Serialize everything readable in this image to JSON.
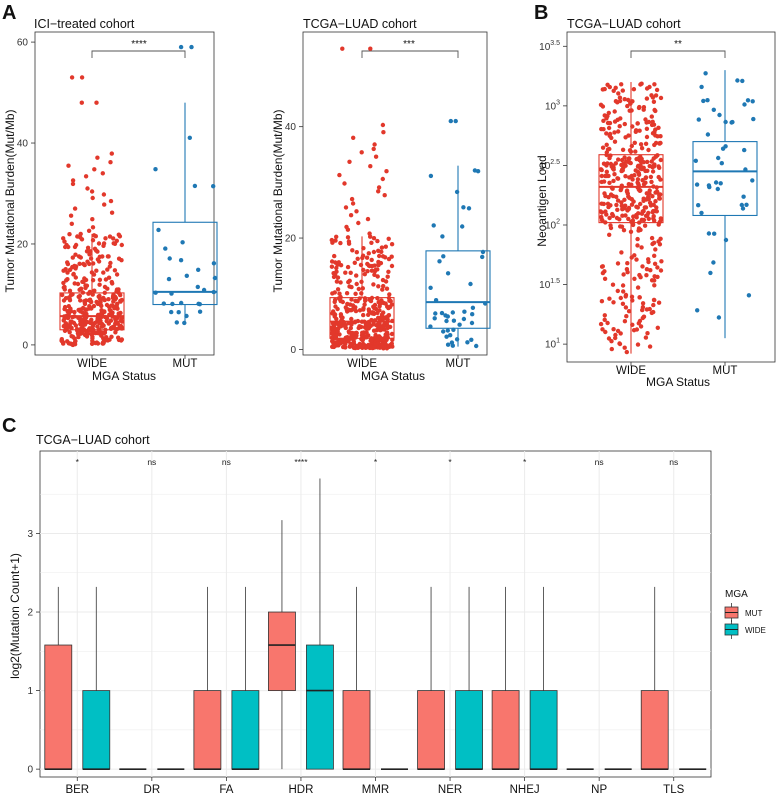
{
  "panel_labels": [
    "A",
    "B",
    "C"
  ],
  "colors": {
    "red": "#e2382b",
    "blue": "#1f78b4",
    "mut_fill": "#f8766d",
    "wide_fill": "#00bfc4",
    "grid": "#ebebeb"
  },
  "chart_data": [
    {
      "id": "A1",
      "type": "boxplot",
      "title": "ICI−treated cohort",
      "xlabel": "MGA Status",
      "ylabel": "Tumor Mutational Burden(Mut/Mb)",
      "ylim": [
        -2,
        62
      ],
      "yticks": [
        0,
        20,
        40,
        60
      ],
      "categories": [
        "WIDE",
        "MUT"
      ],
      "boxes": [
        {
          "group": "WIDE",
          "color": "red",
          "q1": 3,
          "median": 5.7,
          "q3": 10.3,
          "whisker_low": 0,
          "whisker_high": 22,
          "n_points": 380,
          "outliers": [
            22.6,
            23.3,
            24,
            24.9,
            25.6,
            26.2,
            27,
            27.8,
            28.5,
            29.1,
            29.8,
            30.4,
            31,
            31.9,
            32.6,
            33.4,
            34,
            34.8,
            35.5,
            36.2,
            37.1,
            37.9,
            48,
            48,
            53,
            53
          ]
        },
        {
          "group": "MUT",
          "color": "blue",
          "q1": 8,
          "median": 10.5,
          "q3": 24.3,
          "whisker_low": 4,
          "whisker_high": 48,
          "n_points": 30,
          "outliers": [
            59,
            59
          ]
        }
      ],
      "significance": "****"
    },
    {
      "id": "A2",
      "type": "boxplot",
      "title": "TCGA−LUAD cohort",
      "xlabel": "MGA Status",
      "ylabel": "Tumor Mutational Burden(Mut/Mb)",
      "ylim": [
        -1,
        57
      ],
      "yticks": [
        0,
        20,
        40
      ],
      "categories": [
        "WIDE",
        "MUT"
      ],
      "boxes": [
        {
          "group": "WIDE",
          "color": "red",
          "q1": 2,
          "median": 5,
          "q3": 9.3,
          "whisker_low": 0.2,
          "whisker_high": 20.3,
          "n_points": 420,
          "outliers": [
            20.8,
            21.5,
            22,
            22.7,
            23.4,
            24.1,
            24.8,
            25.5,
            26.2,
            27,
            27.7,
            28.4,
            29.1,
            29.8,
            30.6,
            31.3,
            32,
            32.9,
            33.7,
            34.6,
            35.4,
            36,
            36.8,
            38,
            39,
            40.3,
            54,
            54
          ]
        },
        {
          "group": "MUT",
          "color": "blue",
          "q1": 3.8,
          "median": 8.5,
          "q3": 17.7,
          "whisker_low": 0.5,
          "whisker_high": 33,
          "n_points": 45,
          "outliers": [
            41,
            41
          ]
        }
      ],
      "significance": "***"
    },
    {
      "id": "B",
      "type": "boxplot",
      "title": "TCGA−LUAD cohort",
      "y_scale": "log10",
      "xlabel": "MGA Status",
      "ylabel": "Neoantigen Load",
      "ylim": [
        0.85,
        3.62
      ],
      "yticks": [
        1,
        1.5,
        2,
        2.5,
        3,
        3.5
      ],
      "ytick_labels": [
        {
          "base": "10",
          "exp": "1"
        },
        {
          "base": "10",
          "exp": "1.5"
        },
        {
          "base": "10",
          "exp": "2"
        },
        {
          "base": "10",
          "exp": "2.5"
        },
        {
          "base": "10",
          "exp": "3"
        },
        {
          "base": "10",
          "exp": "3.5"
        }
      ],
      "categories": [
        "WIDE",
        "MUT"
      ],
      "boxes": [
        {
          "group": "WIDE",
          "color": "red",
          "q1": 2.02,
          "median": 2.32,
          "q3": 2.59,
          "whisker_low": 0.92,
          "whisker_high": 3.2
        },
        {
          "group": "MUT",
          "color": "blue",
          "q1": 2.08,
          "median": 2.45,
          "q3": 2.7,
          "whisker_low": 1.05,
          "whisker_high": 3.3
        }
      ],
      "significance": "**"
    },
    {
      "id": "C",
      "type": "boxplot",
      "title": "TCGA−LUAD cohort",
      "xlabel": "",
      "ylabel": "log2(Mutation Count+1)",
      "ylim": [
        -0.1,
        4.05
      ],
      "yticks": [
        0,
        1,
        2,
        3
      ],
      "categories": [
        "BER",
        "DR",
        "FA",
        "HDR",
        "MMR",
        "NER",
        "NHEJ",
        "NP",
        "TLS"
      ],
      "legend": {
        "title": "MGA",
        "entries": [
          "MUT",
          "WIDE"
        ]
      },
      "significance": [
        "*",
        "ns",
        "ns",
        "****",
        "*",
        "*",
        "*",
        "ns",
        "ns"
      ],
      "series": [
        {
          "name": "MUT",
          "boxes": [
            {
              "q1": 0,
              "median": 0,
              "q3": 1.58,
              "whisker_low": 0,
              "whisker_high": 2.32
            },
            {
              "q1": 0,
              "median": 0,
              "q3": 0,
              "whisker_low": 0,
              "whisker_high": 0
            },
            {
              "q1": 0,
              "median": 0,
              "q3": 1,
              "whisker_low": 0,
              "whisker_high": 2.32
            },
            {
              "q1": 1,
              "median": 1.58,
              "q3": 2,
              "whisker_low": 0,
              "whisker_high": 3.17
            },
            {
              "q1": 0,
              "median": 0,
              "q3": 1,
              "whisker_low": 0,
              "whisker_high": 2.32
            },
            {
              "q1": 0,
              "median": 0,
              "q3": 1,
              "whisker_low": 0,
              "whisker_high": 2.32
            },
            {
              "q1": 0,
              "median": 0,
              "q3": 1,
              "whisker_low": 0,
              "whisker_high": 2.32
            },
            {
              "q1": 0,
              "median": 0,
              "q3": 0,
              "whisker_low": 0,
              "whisker_high": 0
            },
            {
              "q1": 0,
              "median": 0,
              "q3": 1,
              "whisker_low": 0,
              "whisker_high": 2.32
            }
          ]
        },
        {
          "name": "WIDE",
          "boxes": [
            {
              "q1": 0,
              "median": 0,
              "q3": 1,
              "whisker_low": 0,
              "whisker_high": 2.32
            },
            {
              "q1": 0,
              "median": 0,
              "q3": 0,
              "whisker_low": 0,
              "whisker_high": 0
            },
            {
              "q1": 0,
              "median": 0,
              "q3": 1,
              "whisker_low": 0,
              "whisker_high": 2.32
            },
            {
              "q1": 0,
              "median": 1,
              "q3": 1.58,
              "whisker_low": 0,
              "whisker_high": 3.7
            },
            {
              "q1": 0,
              "median": 0,
              "q3": 0,
              "whisker_low": 0,
              "whisker_high": 0
            },
            {
              "q1": 0,
              "median": 0,
              "q3": 1,
              "whisker_low": 0,
              "whisker_high": 2.32
            },
            {
              "q1": 0,
              "median": 0,
              "q3": 1,
              "whisker_low": 0,
              "whisker_high": 2.32
            },
            {
              "q1": 0,
              "median": 0,
              "q3": 0,
              "whisker_low": 0,
              "whisker_high": 0
            },
            {
              "q1": 0,
              "median": 0,
              "q3": 0,
              "whisker_low": 0,
              "whisker_high": 0
            }
          ]
        }
      ]
    }
  ]
}
